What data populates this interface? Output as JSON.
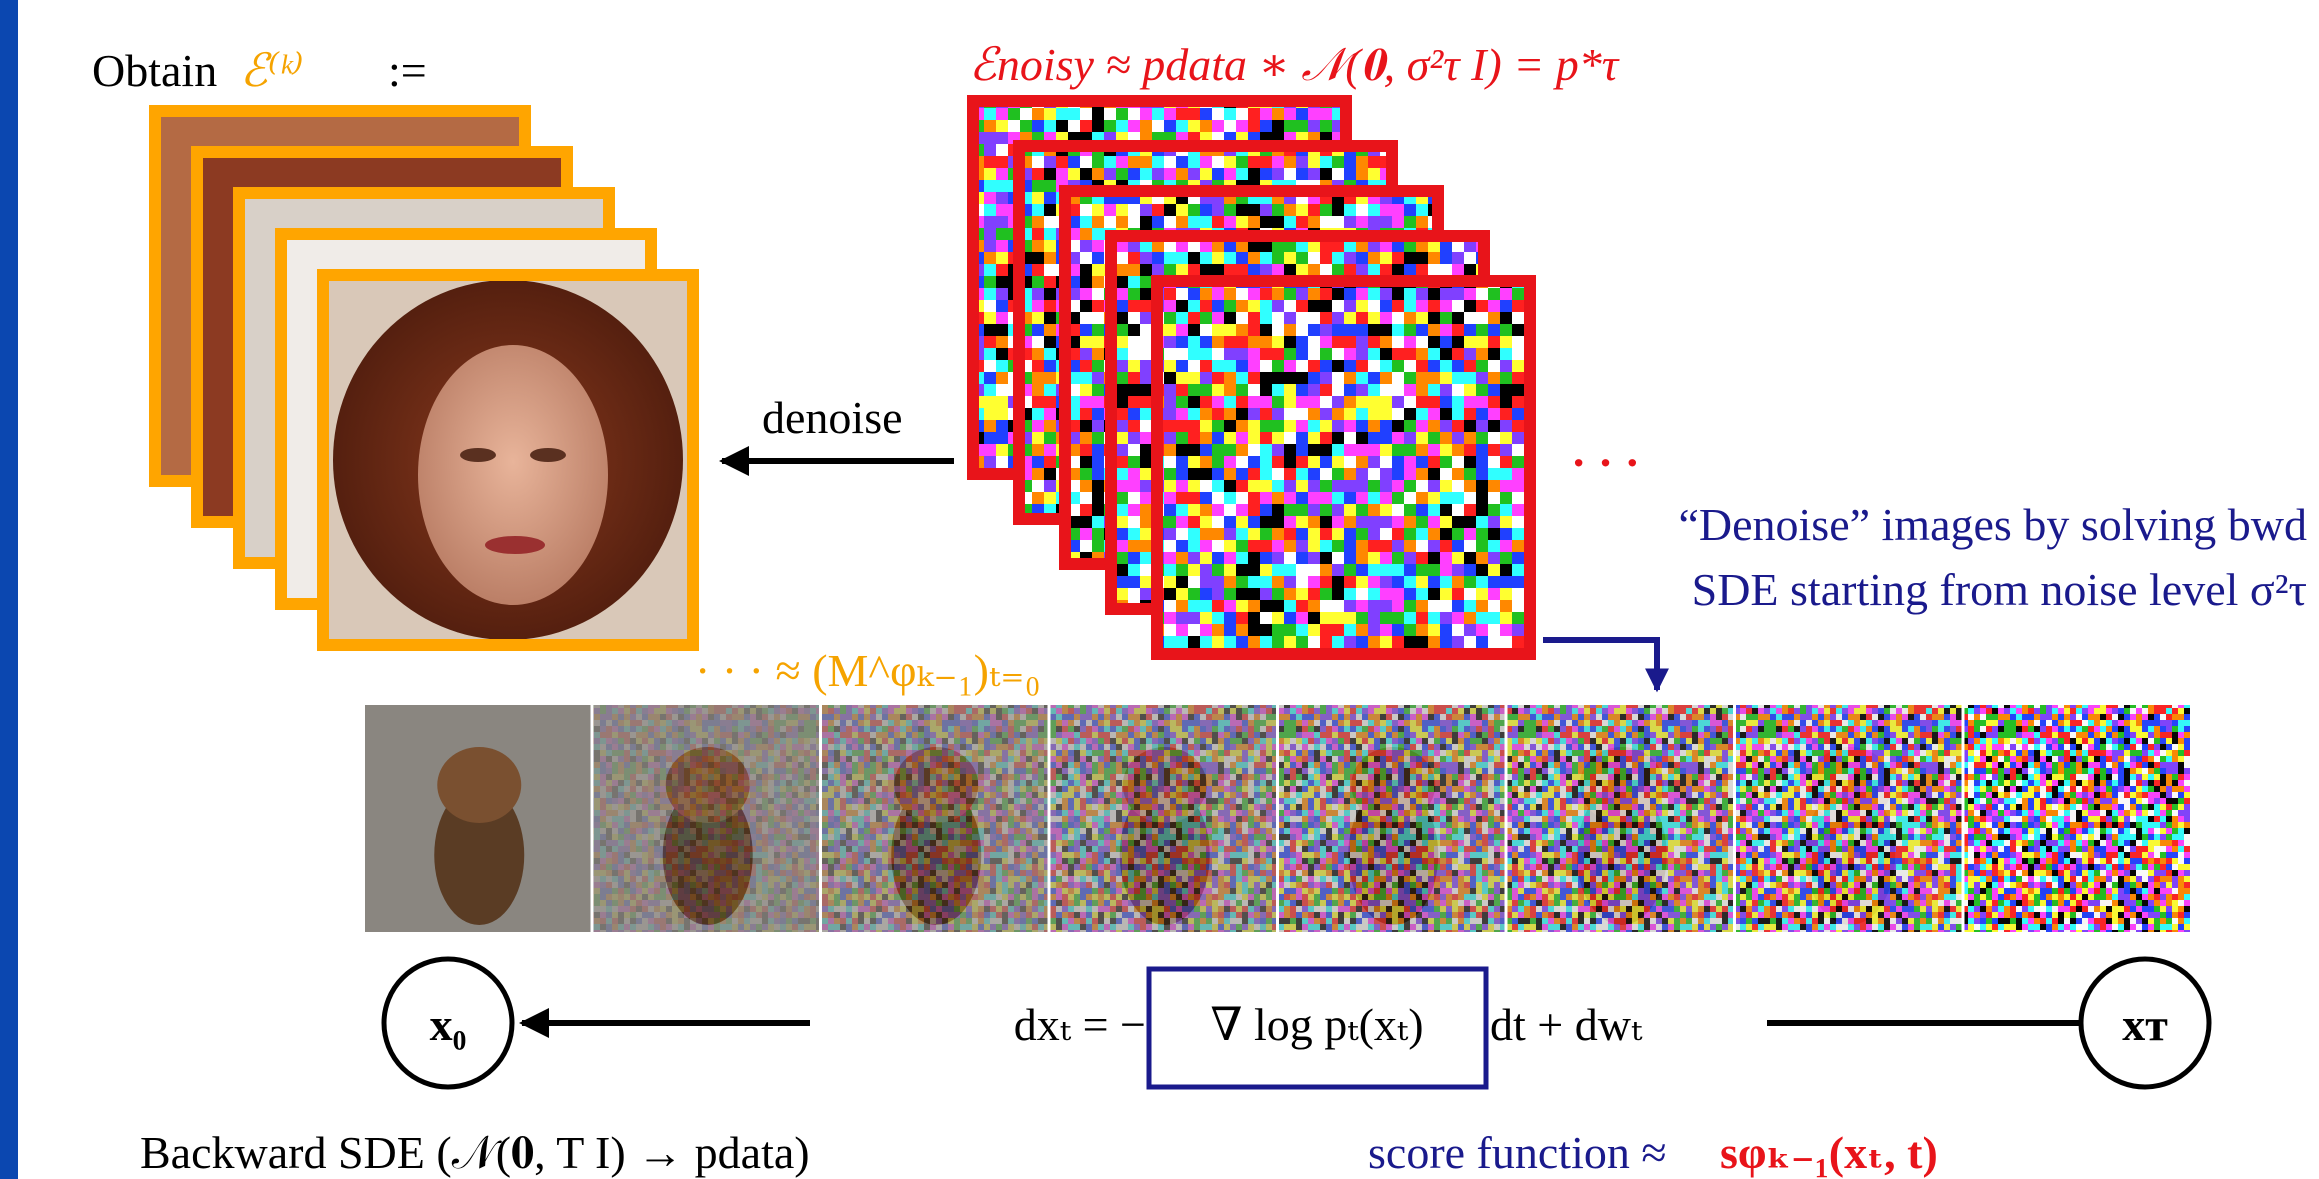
{
  "header": {
    "obtain": "Obtain",
    "set": "ℰ⁽ᵏ⁾",
    "assign": ":="
  },
  "noisy_label": "ℰnoisy ≈ pdata ∗ 𝒩(𝟎, σ²τ I) = p*τ",
  "denoise_label": "denoise",
  "ellipsis": "· · ·",
  "note": {
    "line1": "“Denoise” images by solving bwd",
    "line2": "SDE starting from noise level σ²τ"
  },
  "approx_label": "· · · ≈ (M^φₖ₋₁)ₜ₌₀",
  "equation": {
    "lhs": "dxₜ = −",
    "score": "∇ log pₜ(xₜ)",
    "rhs": "dt + dwₜ"
  },
  "nodes": [
    {
      "label": "x₀"
    },
    {
      "label": "xᴛ"
    }
  ],
  "caption_left": "Backward SDE (𝒩(𝟎, T I) → pdata)",
  "caption_right": {
    "text": "score function ≈",
    "symbol": "sφₖ₋₁(xₜ, t)"
  }
}
